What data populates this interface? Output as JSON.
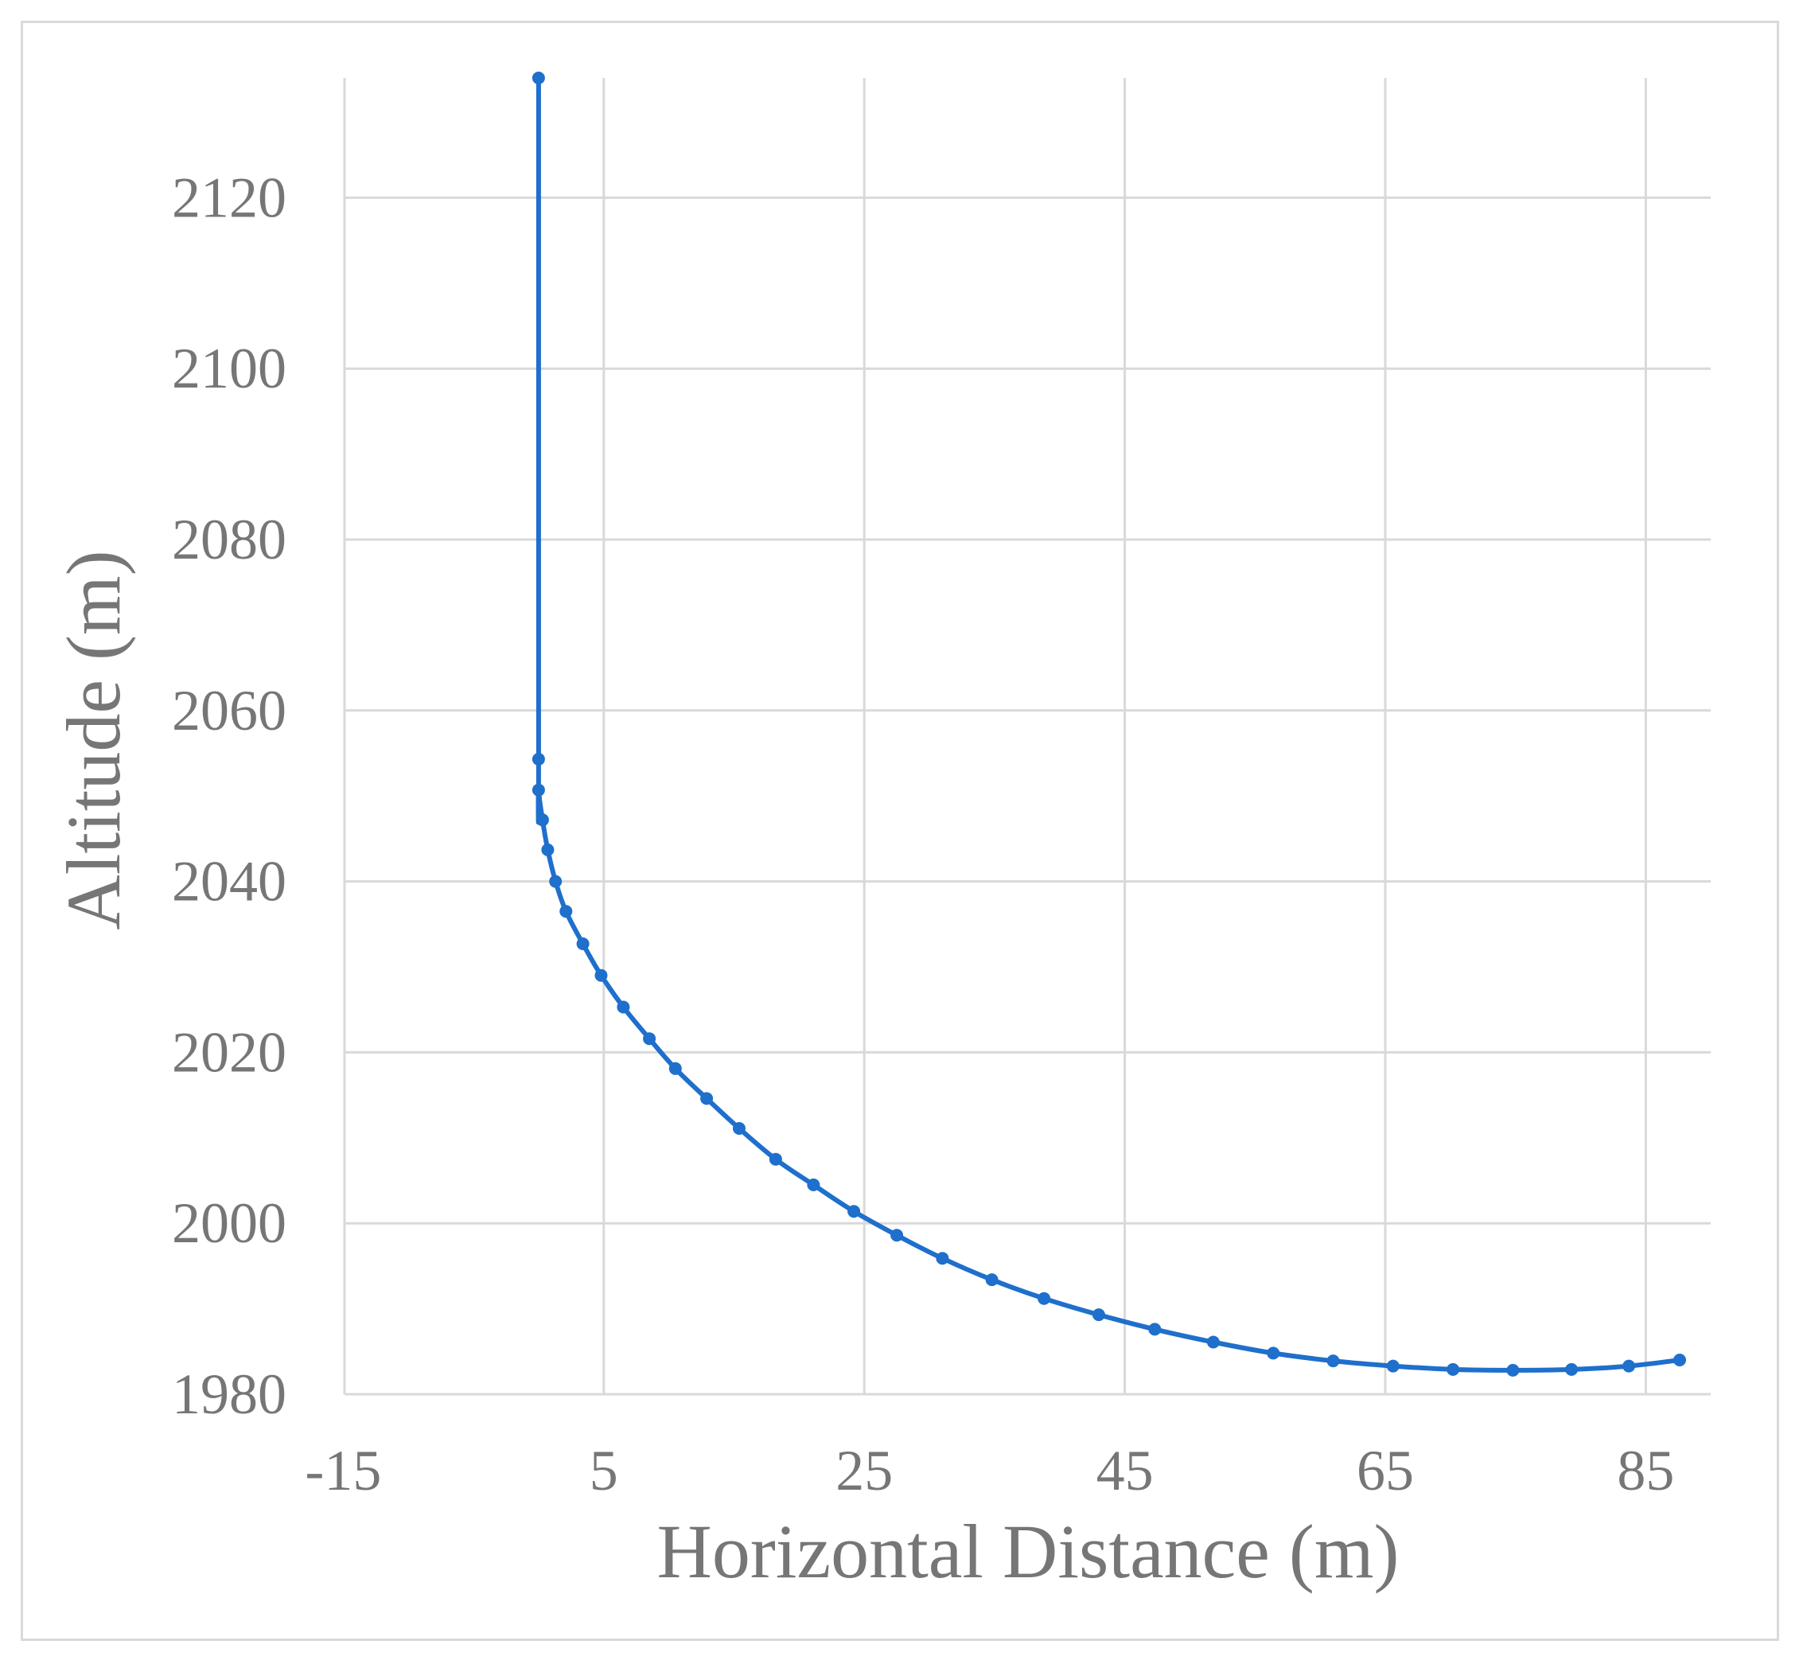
{
  "chart_data": {
    "type": "scatter",
    "title": "",
    "xlabel": "Horizontal Distance (m)",
    "ylabel": "Altitude (m)",
    "xlim": [
      -15,
      90
    ],
    "ylim": [
      1980,
      2134
    ],
    "xticks": [
      -15,
      5,
      25,
      45,
      65,
      85
    ],
    "yticks": [
      1980,
      2000,
      2020,
      2040,
      2060,
      2080,
      2100,
      2120
    ],
    "grid": true,
    "legend": "none",
    "color": "#1f6fcc",
    "series": [
      {
        "x": [
          0,
          0,
          0,
          0.3,
          0.7,
          1.3,
          2.1,
          3.4,
          4.8,
          6.5,
          8.5,
          10.5,
          12.9,
          15.4,
          18.2,
          21.1,
          24.2,
          27.5,
          31.0,
          34.8,
          38.8,
          43.0,
          47.3,
          51.8,
          56.4,
          61.0,
          65.6,
          70.2,
          74.8,
          79.3,
          83.7,
          87.6
        ],
        "y": [
          2134.0,
          2054.3,
          2050.7,
          2047.2,
          2043.7,
          2040.0,
          2036.5,
          2032.7,
          2029.0,
          2025.3,
          2021.6,
          2018.1,
          2014.6,
          2011.1,
          2007.5,
          2004.5,
          2001.4,
          1998.6,
          1995.9,
          1993.4,
          1991.2,
          1989.3,
          1987.6,
          1986.1,
          1984.8,
          1983.9,
          1983.3,
          1982.9,
          1982.8,
          1982.9,
          1983.3,
          1984.0
        ]
      }
    ]
  }
}
